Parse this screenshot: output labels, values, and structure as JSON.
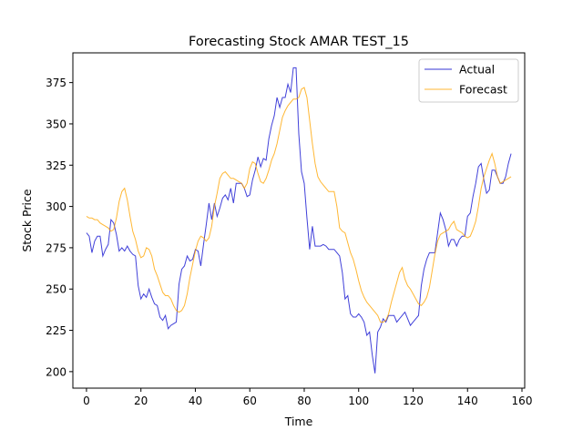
{
  "chart_data": {
    "type": "line",
    "title": "Forecasting Stock AMAR TEST_15",
    "xlabel": "Time",
    "ylabel": "Stock Price",
    "xlim": [
      -5,
      161
    ],
    "ylim": [
      190,
      393
    ],
    "xticks": [
      0,
      20,
      40,
      60,
      80,
      100,
      120,
      140,
      160
    ],
    "yticks": [
      200,
      225,
      250,
      275,
      300,
      325,
      350,
      375
    ],
    "legend_position": "top-right",
    "grid": false,
    "series": [
      {
        "name": "Actual",
        "color": "#0000cc",
        "points": [
          [
            0,
            284
          ],
          [
            1,
            282
          ],
          [
            2,
            272
          ],
          [
            3,
            279
          ],
          [
            4,
            282
          ],
          [
            5,
            282
          ],
          [
            6,
            270
          ],
          [
            7,
            274
          ],
          [
            8,
            277
          ],
          [
            9,
            292
          ],
          [
            10,
            290
          ],
          [
            11,
            283
          ],
          [
            12,
            273
          ],
          [
            13,
            275
          ],
          [
            14,
            273
          ],
          [
            15,
            276
          ],
          [
            16,
            273
          ],
          [
            17,
            271
          ],
          [
            18,
            270
          ],
          [
            19,
            252
          ],
          [
            20,
            244
          ],
          [
            21,
            247
          ],
          [
            22,
            245
          ],
          [
            23,
            250
          ],
          [
            24,
            245
          ],
          [
            25,
            241
          ],
          [
            26,
            240
          ],
          [
            27,
            233
          ],
          [
            28,
            231
          ],
          [
            29,
            234
          ],
          [
            30,
            226
          ],
          [
            31,
            228
          ],
          [
            32,
            229
          ],
          [
            33,
            230
          ],
          [
            34,
            253
          ],
          [
            35,
            262
          ],
          [
            36,
            264
          ],
          [
            37,
            270
          ],
          [
            38,
            267
          ],
          [
            39,
            268
          ],
          [
            40,
            274
          ],
          [
            41,
            273
          ],
          [
            42,
            264
          ],
          [
            43,
            277
          ],
          [
            44,
            289
          ],
          [
            45,
            302
          ],
          [
            46,
            292
          ],
          [
            47,
            302
          ],
          [
            48,
            294
          ],
          [
            49,
            299
          ],
          [
            50,
            305
          ],
          [
            51,
            307
          ],
          [
            52,
            304
          ],
          [
            53,
            311
          ],
          [
            54,
            302
          ],
          [
            55,
            314
          ],
          [
            56,
            314
          ],
          [
            57,
            314
          ],
          [
            58,
            311
          ],
          [
            59,
            306
          ],
          [
            60,
            307
          ],
          [
            61,
            316
          ],
          [
            62,
            322
          ],
          [
            63,
            330
          ],
          [
            64,
            324
          ],
          [
            65,
            329
          ],
          [
            66,
            328
          ],
          [
            67,
            341
          ],
          [
            68,
            349
          ],
          [
            69,
            355
          ],
          [
            70,
            366
          ],
          [
            71,
            360
          ],
          [
            72,
            366
          ],
          [
            73,
            366
          ],
          [
            74,
            374
          ],
          [
            75,
            369
          ],
          [
            76,
            384
          ],
          [
            77,
            384
          ],
          [
            78,
            344
          ],
          [
            79,
            321
          ],
          [
            80,
            314
          ],
          [
            81,
            293
          ],
          [
            82,
            274
          ],
          [
            83,
            288
          ],
          [
            84,
            276
          ],
          [
            85,
            276
          ],
          [
            86,
            276
          ],
          [
            87,
            277
          ],
          [
            88,
            276
          ],
          [
            89,
            274
          ],
          [
            90,
            274
          ],
          [
            91,
            274
          ],
          [
            92,
            272
          ],
          [
            93,
            270
          ],
          [
            94,
            260
          ],
          [
            95,
            244
          ],
          [
            96,
            246
          ],
          [
            97,
            235
          ],
          [
            98,
            233
          ],
          [
            99,
            233
          ],
          [
            100,
            235
          ],
          [
            101,
            233
          ],
          [
            102,
            230
          ],
          [
            103,
            222
          ],
          [
            104,
            224
          ],
          [
            105,
            210
          ],
          [
            106,
            199
          ],
          [
            107,
            224
          ],
          [
            108,
            227
          ],
          [
            109,
            232
          ],
          [
            110,
            230
          ],
          [
            111,
            234
          ],
          [
            112,
            234
          ],
          [
            113,
            234
          ],
          [
            114,
            230
          ],
          [
            115,
            232
          ],
          [
            116,
            234
          ],
          [
            117,
            236
          ],
          [
            118,
            232
          ],
          [
            119,
            228
          ],
          [
            120,
            230
          ],
          [
            121,
            232
          ],
          [
            122,
            234
          ],
          [
            123,
            252
          ],
          [
            124,
            262
          ],
          [
            125,
            268
          ],
          [
            126,
            272
          ],
          [
            127,
            272
          ],
          [
            128,
            272
          ],
          [
            129,
            284
          ],
          [
            130,
            296
          ],
          [
            131,
            292
          ],
          [
            132,
            286
          ],
          [
            133,
            276
          ],
          [
            134,
            280
          ],
          [
            135,
            280
          ],
          [
            136,
            276
          ],
          [
            137,
            280
          ],
          [
            138,
            282
          ],
          [
            139,
            282
          ],
          [
            140,
            294
          ],
          [
            141,
            296
          ],
          [
            142,
            306
          ],
          [
            143,
            314
          ],
          [
            144,
            324
          ],
          [
            145,
            326
          ],
          [
            146,
            316
          ],
          [
            147,
            308
          ],
          [
            148,
            310
          ],
          [
            149,
            322
          ],
          [
            150,
            322
          ],
          [
            151,
            318
          ],
          [
            152,
            314
          ],
          [
            153,
            314
          ],
          [
            154,
            318
          ],
          [
            155,
            326
          ],
          [
            156,
            332
          ]
        ]
      },
      {
        "name": "Forecast",
        "color": "#ffa500",
        "points": [
          [
            0,
            294
          ],
          [
            1,
            293
          ],
          [
            2,
            293
          ],
          [
            3,
            292
          ],
          [
            4,
            292
          ],
          [
            5,
            290
          ],
          [
            6,
            289
          ],
          [
            7,
            288
          ],
          [
            8,
            287
          ],
          [
            9,
            285
          ],
          [
            10,
            286
          ],
          [
            11,
            293
          ],
          [
            12,
            303
          ],
          [
            13,
            309
          ],
          [
            14,
            311
          ],
          [
            15,
            304
          ],
          [
            16,
            294
          ],
          [
            17,
            285
          ],
          [
            18,
            280
          ],
          [
            19,
            273
          ],
          [
            20,
            269
          ],
          [
            21,
            270
          ],
          [
            22,
            275
          ],
          [
            23,
            274
          ],
          [
            24,
            270
          ],
          [
            25,
            262
          ],
          [
            26,
            258
          ],
          [
            27,
            253
          ],
          [
            28,
            248
          ],
          [
            29,
            246
          ],
          [
            30,
            246
          ],
          [
            31,
            244
          ],
          [
            32,
            240
          ],
          [
            33,
            237
          ],
          [
            34,
            236
          ],
          [
            35,
            237
          ],
          [
            36,
            240
          ],
          [
            37,
            247
          ],
          [
            38,
            257
          ],
          [
            39,
            265
          ],
          [
            40,
            273
          ],
          [
            41,
            279
          ],
          [
            42,
            282
          ],
          [
            43,
            281
          ],
          [
            44,
            279
          ],
          [
            45,
            281
          ],
          [
            46,
            288
          ],
          [
            47,
            300
          ],
          [
            48,
            308
          ],
          [
            49,
            317
          ],
          [
            50,
            320
          ],
          [
            51,
            321
          ],
          [
            52,
            319
          ],
          [
            53,
            317
          ],
          [
            54,
            317
          ],
          [
            55,
            316
          ],
          [
            56,
            315
          ],
          [
            57,
            314
          ],
          [
            58,
            311
          ],
          [
            59,
            314
          ],
          [
            60,
            323
          ],
          [
            61,
            327
          ],
          [
            62,
            326
          ],
          [
            63,
            320
          ],
          [
            64,
            315
          ],
          [
            65,
            314
          ],
          [
            66,
            317
          ],
          [
            67,
            322
          ],
          [
            68,
            328
          ],
          [
            69,
            332
          ],
          [
            70,
            338
          ],
          [
            71,
            346
          ],
          [
            72,
            354
          ],
          [
            73,
            358
          ],
          [
            74,
            361
          ],
          [
            75,
            363
          ],
          [
            76,
            365
          ],
          [
            77,
            365
          ],
          [
            78,
            366
          ],
          [
            79,
            371
          ],
          [
            80,
            372
          ],
          [
            81,
            366
          ],
          [
            82,
            352
          ],
          [
            83,
            338
          ],
          [
            84,
            326
          ],
          [
            85,
            318
          ],
          [
            86,
            315
          ],
          [
            87,
            313
          ],
          [
            88,
            311
          ],
          [
            89,
            309
          ],
          [
            90,
            309
          ],
          [
            91,
            309
          ],
          [
            92,
            300
          ],
          [
            93,
            287
          ],
          [
            94,
            285
          ],
          [
            95,
            284
          ],
          [
            96,
            278
          ],
          [
            97,
            272
          ],
          [
            98,
            268
          ],
          [
            99,
            262
          ],
          [
            100,
            255
          ],
          [
            101,
            249
          ],
          [
            102,
            245
          ],
          [
            103,
            242
          ],
          [
            104,
            240
          ],
          [
            105,
            238
          ],
          [
            106,
            236
          ],
          [
            107,
            234
          ],
          [
            108,
            230
          ],
          [
            109,
            230
          ],
          [
            110,
            231
          ],
          [
            111,
            235
          ],
          [
            112,
            242
          ],
          [
            113,
            248
          ],
          [
            114,
            254
          ],
          [
            115,
            260
          ],
          [
            116,
            263
          ],
          [
            117,
            256
          ],
          [
            118,
            252
          ],
          [
            119,
            250
          ],
          [
            120,
            247
          ],
          [
            121,
            244
          ],
          [
            122,
            241
          ],
          [
            123,
            240
          ],
          [
            124,
            242
          ],
          [
            125,
            245
          ],
          [
            126,
            251
          ],
          [
            127,
            261
          ],
          [
            128,
            271
          ],
          [
            129,
            279
          ],
          [
            130,
            283
          ],
          [
            131,
            284
          ],
          [
            132,
            285
          ],
          [
            133,
            286
          ],
          [
            134,
            289
          ],
          [
            135,
            291
          ],
          [
            136,
            286
          ],
          [
            137,
            285
          ],
          [
            138,
            284
          ],
          [
            139,
            282
          ],
          [
            140,
            281
          ],
          [
            141,
            282
          ],
          [
            142,
            286
          ],
          [
            143,
            291
          ],
          [
            144,
            300
          ],
          [
            145,
            311
          ],
          [
            146,
            318
          ],
          [
            147,
            323
          ],
          [
            148,
            328
          ],
          [
            149,
            332
          ],
          [
            150,
            326
          ],
          [
            151,
            318
          ],
          [
            152,
            314
          ],
          [
            153,
            315
          ],
          [
            154,
            316
          ],
          [
            155,
            317
          ],
          [
            156,
            318
          ]
        ]
      }
    ]
  }
}
